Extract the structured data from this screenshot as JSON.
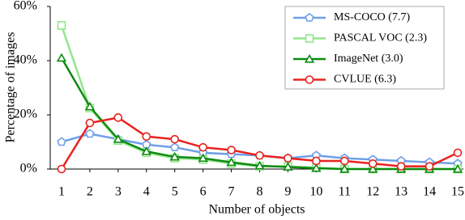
{
  "chart_data": {
    "type": "line",
    "x_label": "Number of objects",
    "y_label": "Percentage of images",
    "x": [
      1,
      2,
      3,
      4,
      5,
      6,
      7,
      8,
      9,
      10,
      11,
      12,
      13,
      14,
      15
    ],
    "xlim": [
      0.6,
      15.2
    ],
    "xticks": [
      1,
      2,
      3,
      4,
      5,
      6,
      7,
      8,
      9,
      10,
      11,
      12,
      13,
      14,
      15
    ],
    "ylim": [
      0,
      60
    ],
    "yticks": [
      {
        "value": 0,
        "label": "0%"
      },
      {
        "value": 20,
        "label": "20%"
      },
      {
        "value": 40,
        "label": "40%"
      },
      {
        "value": 60,
        "label": "60%"
      }
    ],
    "grid": false,
    "legend": "upper right",
    "series": [
      {
        "name": "MS-COCO (7.7)",
        "color": "#6f9fe6",
        "marker": "pentagon",
        "values": [
          10,
          13,
          11,
          9,
          8,
          6,
          5.5,
          5,
          4,
          5,
          4,
          3.5,
          3,
          2.5,
          2
        ]
      },
      {
        "name": "PASCAL VOC (2.3)",
        "color": "#93e68c",
        "marker": "square",
        "values": [
          53,
          22.5,
          10.5,
          6,
          4,
          3.5,
          2,
          1,
          1,
          0.5,
          0,
          0,
          0,
          0,
          0
        ]
      },
      {
        "name": "ImageNet (3.0)",
        "color": "#0e8a12",
        "marker": "triangle",
        "values": [
          41,
          23,
          11,
          6.5,
          4.5,
          4,
          2.5,
          1.2,
          0.8,
          0.3,
          0,
          0,
          0,
          0,
          0
        ]
      },
      {
        "name": "CVLUE (6.3)",
        "color": "#e8231f",
        "marker": "circle",
        "values": [
          0,
          17,
          19,
          12,
          11,
          8,
          7,
          5,
          4,
          3,
          3,
          2,
          1,
          1,
          6
        ]
      }
    ]
  }
}
